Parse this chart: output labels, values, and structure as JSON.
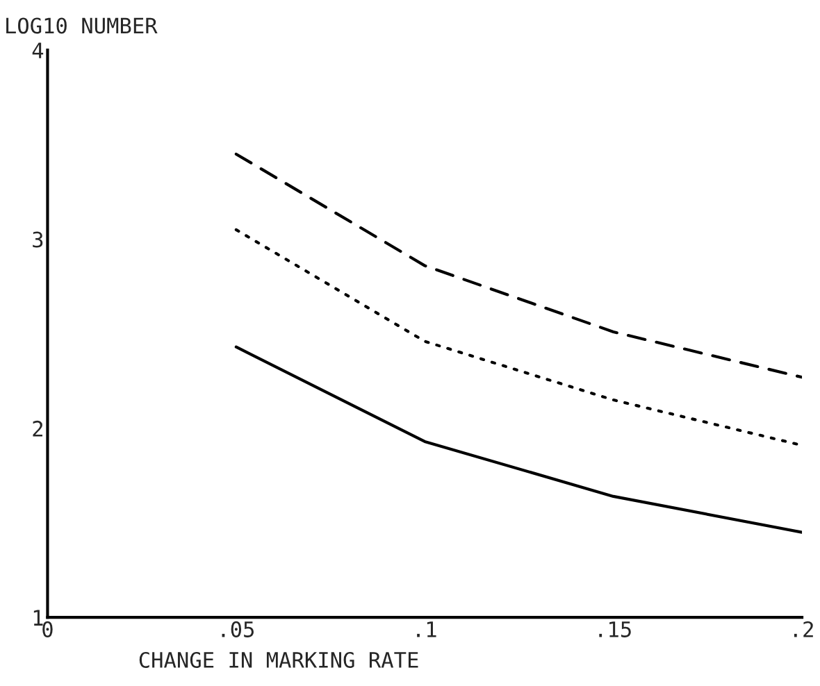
{
  "chart_data": {
    "type": "line",
    "xlabel": "CHANGE IN MARKING RATE",
    "ylabel": "LOG10 NUMBER",
    "x": [
      0.05,
      0.1,
      0.15,
      0.2
    ],
    "series": [
      {
        "color": "#000000",
        "line_style": "dashed",
        "values": [
          3.45,
          2.86,
          2.51,
          2.27
        ]
      },
      {
        "color": "#000000",
        "line_style": "dotted",
        "values": [
          3.05,
          2.46,
          2.15,
          1.91
        ]
      },
      {
        "color": "#000000",
        "line_style": "solid",
        "values": [
          2.43,
          1.93,
          1.64,
          1.45
        ]
      }
    ],
    "xlim": [
      0,
      0.2
    ],
    "ylim": [
      1,
      4
    ],
    "xticks": [
      {
        "value": 0,
        "label": "0"
      },
      {
        "value": 0.05,
        "label": ".05"
      },
      {
        "value": 0.1,
        "label": ".1"
      },
      {
        "value": 0.15,
        "label": ".15"
      },
      {
        "value": 0.2,
        "label": ".2"
      }
    ],
    "yticks": [
      1,
      2,
      3,
      4
    ],
    "grid": false,
    "legend": false,
    "marker": "none"
  }
}
